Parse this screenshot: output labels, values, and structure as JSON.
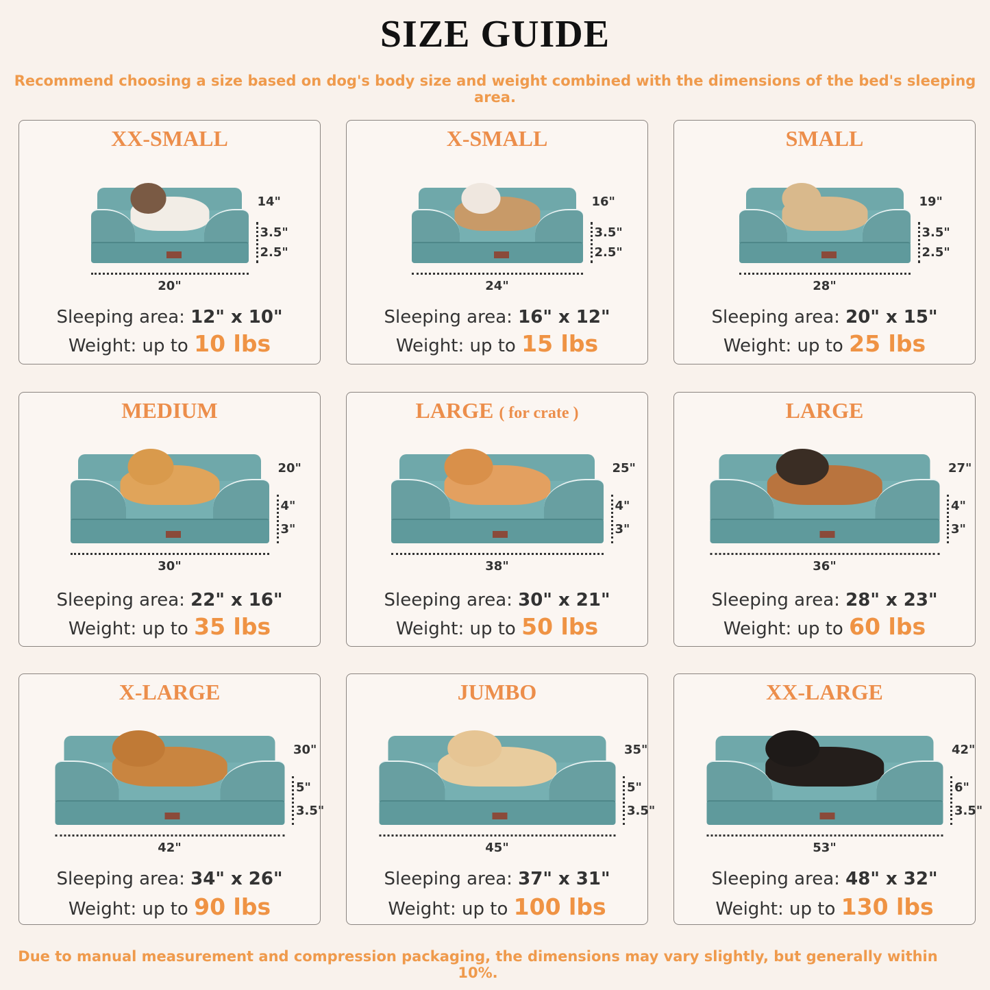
{
  "header": {
    "title": "SIZE GUIDE",
    "subtitle": "Recommend choosing a size based on dog's body size and weight combined with the dimensions of the bed's sleeping area."
  },
  "footer": "Due to manual measurement and compression packaging, the dimensions may vary slightly, but generally within 10%.",
  "labels": {
    "sleeping_area": "Sleeping area:",
    "weight": "Weight: up to"
  },
  "colors": {
    "accent": "#ef9344",
    "bed": "#6fa8aa",
    "background": "#f9f2ec"
  },
  "sizes": [
    {
      "name": "XX-SMALL",
      "note": "",
      "pet": "cat",
      "length": "20\"",
      "width": "14\"",
      "bolster": "3.5\"",
      "base": "2.5\"",
      "sleeping_area": "12\" x 10\"",
      "weight": "10 lbs"
    },
    {
      "name": "X-SMALL",
      "note": "",
      "pet": "small dog",
      "length": "24\"",
      "width": "16\"",
      "bolster": "3.5\"",
      "base": "2.5\"",
      "sleeping_area": "16\" x 12\"",
      "weight": "15 lbs"
    },
    {
      "name": "SMALL",
      "note": "",
      "pet": "french bulldog",
      "length": "28\"",
      "width": "19\"",
      "bolster": "3.5\"",
      "base": "2.5\"",
      "sleeping_area": "20\" x 15\"",
      "weight": "25 lbs"
    },
    {
      "name": "MEDIUM",
      "note": "",
      "pet": "corgi",
      "length": "30\"",
      "width": "20\"",
      "bolster": "4\"",
      "base": "3\"",
      "sleeping_area": "22\" x 16\"",
      "weight": "35 lbs"
    },
    {
      "name": "LARGE",
      "note": "( for crate )",
      "pet": "shiba inu",
      "length": "38\"",
      "width": "25\"",
      "bolster": "4\"",
      "base": "3\"",
      "sleeping_area": "30\" x 21\"",
      "weight": "50 lbs"
    },
    {
      "name": "LARGE",
      "note": "",
      "pet": "shepherd",
      "length": "36\"",
      "width": "27\"",
      "bolster": "4\"",
      "base": "3\"",
      "sleeping_area": "28\" x 23\"",
      "weight": "60 lbs"
    },
    {
      "name": "X-LARGE",
      "note": "",
      "pet": "golden retriever",
      "length": "42\"",
      "width": "30\"",
      "bolster": "5\"",
      "base": "3.5\"",
      "sleeping_area": "34\" x 26\"",
      "weight": "90 lbs"
    },
    {
      "name": "JUMBO",
      "note": "",
      "pet": "labrador",
      "length": "45\"",
      "width": "35\"",
      "bolster": "5\"",
      "base": "3.5\"",
      "sleeping_area": "37\" x 31\"",
      "weight": "100 lbs"
    },
    {
      "name": "XX-LARGE",
      "note": "",
      "pet": "rottweiler",
      "length": "53\"",
      "width": "42\"",
      "bolster": "6\"",
      "base": "3.5\"",
      "sleeping_area": "48\" x 32\"",
      "weight": "130 lbs"
    }
  ]
}
